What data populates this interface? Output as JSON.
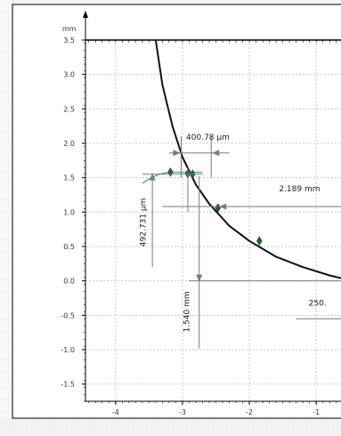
{
  "chart_data": {
    "type": "scatter",
    "ylabel": "mm",
    "x_ticks": [
      "-4",
      "-3",
      "-2",
      "-1"
    ],
    "y_ticks": [
      "3.5",
      "3.0",
      "2.5",
      "2.0",
      "1.5",
      "1.0",
      "0.5",
      "0.0",
      "-0.5",
      "-1.0",
      "-1.5"
    ],
    "xlim": [
      -4.45,
      -0.63
    ],
    "ylim": [
      -1.75,
      3.5
    ],
    "grid": true,
    "series": [
      {
        "kind": "arc",
        "color": "#111111",
        "points": [
          [
            -3.4,
            3.5
          ],
          [
            -3.3,
            2.85
          ],
          [
            -3.15,
            2.25
          ],
          [
            -3.0,
            1.8
          ],
          [
            -2.8,
            1.4
          ],
          [
            -2.6,
            1.12
          ],
          [
            -2.3,
            0.8
          ],
          [
            -2.0,
            0.58
          ],
          [
            -1.6,
            0.35
          ],
          [
            -1.2,
            0.2
          ],
          [
            -0.8,
            0.08
          ],
          [
            -0.63,
            0.04
          ]
        ]
      },
      {
        "kind": "profile",
        "color": "#3fa7b5",
        "points": [
          [
            -3.6,
            1.42
          ],
          [
            -3.5,
            1.48
          ],
          [
            -3.35,
            1.55
          ],
          [
            -3.2,
            1.58
          ],
          [
            -3.0,
            1.58
          ],
          [
            -2.7,
            1.58
          ]
        ]
      },
      {
        "kind": "markers",
        "color": "#2f5a2f",
        "points": [
          [
            -3.18,
            1.58
          ],
          [
            -2.92,
            1.56
          ],
          [
            -2.85,
            1.55
          ],
          [
            -2.47,
            1.06
          ],
          [
            -1.85,
            0.58
          ]
        ]
      }
    ],
    "annotations": [
      {
        "text": "400.78 µm"
      },
      {
        "text": "2.189 mm"
      },
      {
        "text": "492.731 µm"
      },
      {
        "text": "1.540 mm"
      },
      {
        "text": "250."
      }
    ]
  }
}
